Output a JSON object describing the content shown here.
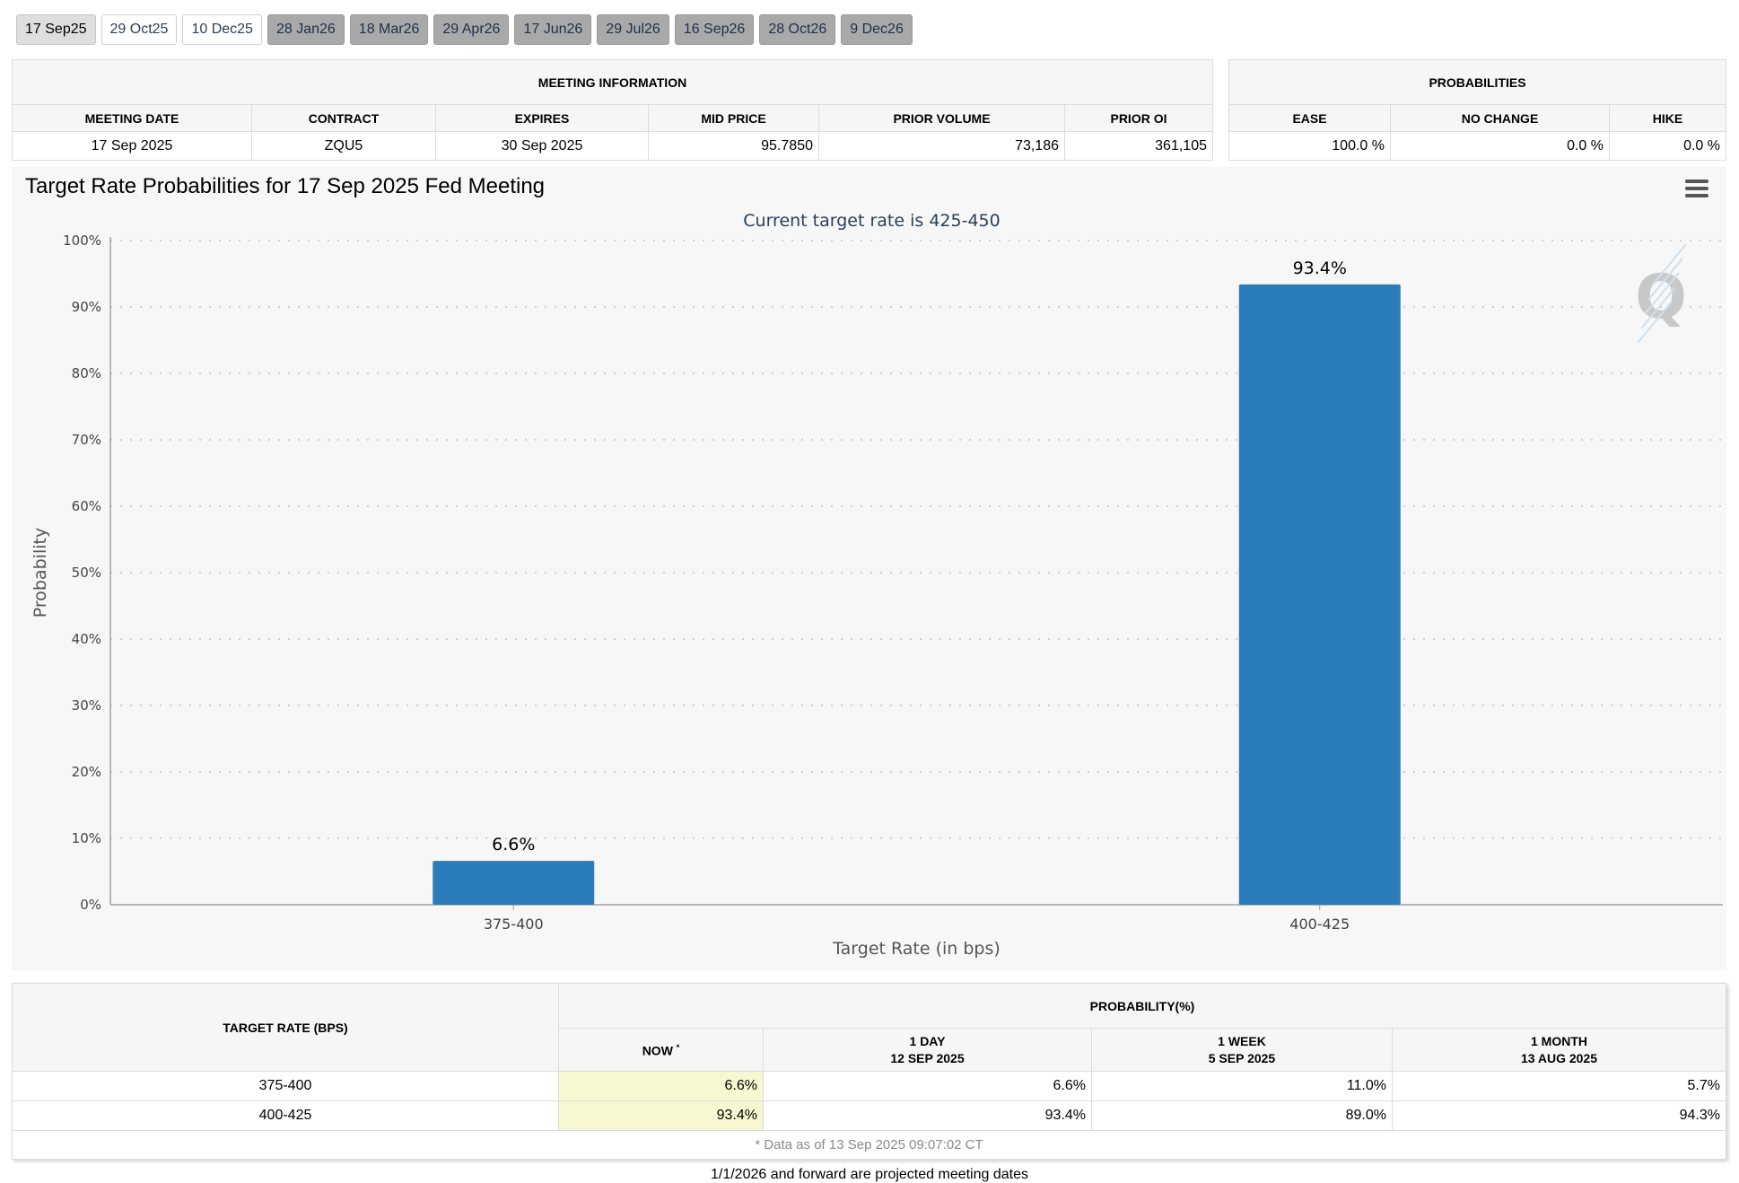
{
  "tabs": [
    {
      "label": "17 Sep25",
      "state": "active"
    },
    {
      "label": "29 Oct25",
      "state": "normal"
    },
    {
      "label": "10 Dec25",
      "state": "normal"
    },
    {
      "label": "28 Jan26",
      "state": "projected"
    },
    {
      "label": "18 Mar26",
      "state": "projected"
    },
    {
      "label": "29 Apr26",
      "state": "projected"
    },
    {
      "label": "17 Jun26",
      "state": "projected"
    },
    {
      "label": "29 Jul26",
      "state": "projected"
    },
    {
      "label": "16 Sep26",
      "state": "projected"
    },
    {
      "label": "28 Oct26",
      "state": "projected"
    },
    {
      "label": "9 Dec26",
      "state": "projected"
    }
  ],
  "meeting_info": {
    "title": "MEETING INFORMATION",
    "headers": [
      "MEETING DATE",
      "CONTRACT",
      "EXPIRES",
      "MID PRICE",
      "PRIOR VOLUME",
      "PRIOR OI"
    ],
    "values": [
      "17 Sep 2025",
      "ZQU5",
      "30 Sep 2025",
      "95.7850",
      "73,186",
      "361,105"
    ]
  },
  "probabilities": {
    "title": "PROBABILITIES",
    "headers": [
      "EASE",
      "NO CHANGE",
      "HIKE"
    ],
    "values": [
      "100.0 %",
      "0.0 %",
      "0.0 %"
    ]
  },
  "chart_data": {
    "type": "bar",
    "title": "Target Rate Probabilities for 17 Sep 2025 Fed Meeting",
    "subtitle": "Current target rate is 425-450",
    "xlabel": "Target Rate (in bps)",
    "ylabel": "Probability",
    "categories": [
      "375-400",
      "400-425"
    ],
    "values": [
      6.6,
      93.4
    ],
    "data_labels": [
      "6.6%",
      "93.4%"
    ],
    "ylim": [
      0,
      100
    ],
    "yticks": [
      "0%",
      "10%",
      "20%",
      "30%",
      "40%",
      "50%",
      "60%",
      "70%",
      "80%",
      "90%",
      "100%"
    ],
    "grid": true,
    "legend": "none",
    "bar_color": "#2a7db8",
    "watermark": "Q"
  },
  "history": {
    "row_header": "TARGET RATE (BPS)",
    "group_header": "PROBABILITY(%)",
    "columns": [
      {
        "label": "NOW",
        "sup": "*",
        "date": ""
      },
      {
        "label": "1 DAY",
        "sup": "",
        "date": "12 SEP 2025"
      },
      {
        "label": "1 WEEK",
        "sup": "",
        "date": "5 SEP 2025"
      },
      {
        "label": "1 MONTH",
        "sup": "",
        "date": "13 AUG 2025"
      }
    ],
    "rows": [
      {
        "rate": "375-400",
        "values": [
          "6.6%",
          "6.6%",
          "11.0%",
          "5.7%"
        ]
      },
      {
        "rate": "400-425",
        "values": [
          "93.4%",
          "93.4%",
          "89.0%",
          "94.3%"
        ]
      }
    ],
    "note": "* Data as of 13 Sep 2025 09:07:02 CT"
  },
  "footnote": "1/1/2026 and forward are projected meeting dates"
}
